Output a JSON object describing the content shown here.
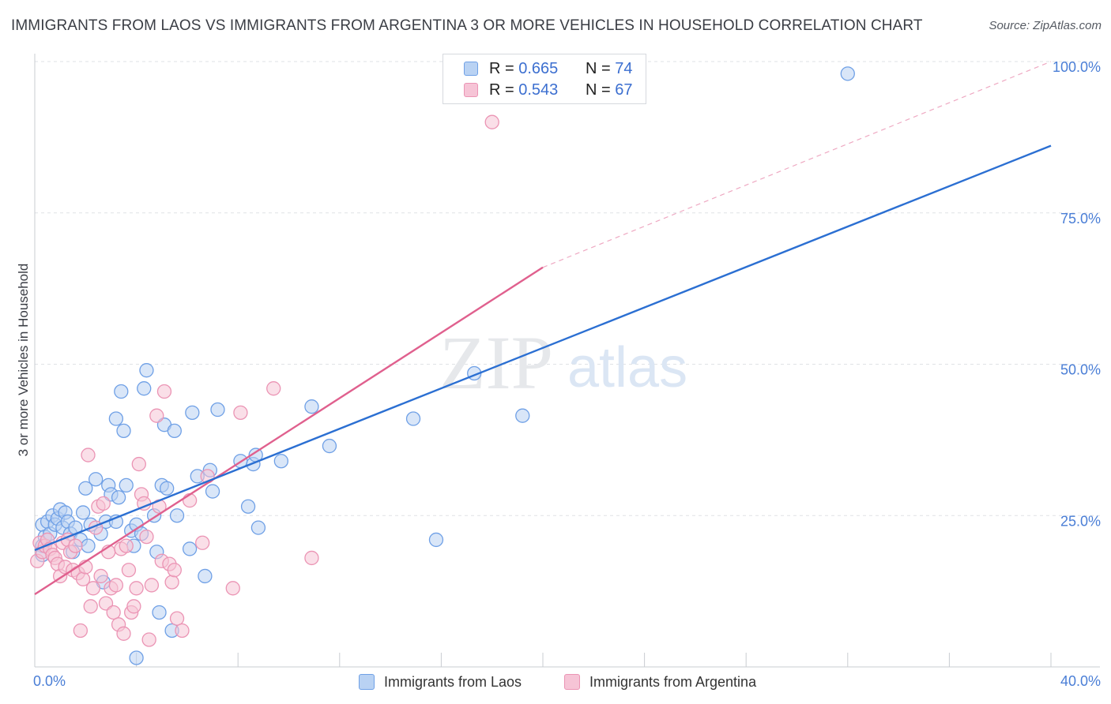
{
  "title": "IMMIGRANTS FROM LAOS VS IMMIGRANTS FROM ARGENTINA 3 OR MORE VEHICLES IN HOUSEHOLD CORRELATION CHART",
  "source": "Source: ZipAtlas.com",
  "watermark": {
    "zip": "ZIP",
    "atlas": "atlas"
  },
  "legend_top": [
    {
      "r_label": "R =",
      "r_value": "0.665",
      "n_label": "N =",
      "n_value": "74"
    },
    {
      "r_label": "R =",
      "r_value": "0.543",
      "n_label": "N =",
      "n_value": "67"
    }
  ],
  "chart_data": {
    "type": "scatter",
    "title": "IMMIGRANTS FROM LAOS VS IMMIGRANTS FROM ARGENTINA 3 OR MORE VEHICLES IN HOUSEHOLD CORRELATION CHART",
    "xlabel": "",
    "ylabel": "3 or more Vehicles in Household",
    "xlim": [
      0,
      40
    ],
    "ylim": [
      0,
      100
    ],
    "x_tick_labels": [
      "0.0%",
      "40.0%"
    ],
    "y_tick_labels": [
      "25.0%",
      "50.0%",
      "75.0%",
      "100.0%"
    ],
    "y_ticks": [
      25,
      50,
      75,
      100
    ],
    "grid": true,
    "legend_position": "top-center",
    "series": [
      {
        "name": "Immigrants from Laos",
        "color": "#6fa0e6",
        "fill": "#b9d2f3",
        "trend_color": "#2b6fd2",
        "r": 0.665,
        "n": 74,
        "trend": {
          "x": [
            0,
            40
          ],
          "y": [
            19.3,
            86.1
          ]
        },
        "points": [
          [
            0.3,
            20.0
          ],
          [
            0.3,
            18.5
          ],
          [
            0.3,
            23.5
          ],
          [
            0.4,
            21.5
          ],
          [
            0.5,
            24.0
          ],
          [
            0.6,
            22.0
          ],
          [
            0.7,
            25.0
          ],
          [
            0.8,
            23.5
          ],
          [
            0.9,
            24.5
          ],
          [
            1.0,
            26.0
          ],
          [
            1.1,
            23.0
          ],
          [
            1.2,
            25.5
          ],
          [
            1.3,
            24.0
          ],
          [
            1.4,
            22.0
          ],
          [
            1.5,
            19.0
          ],
          [
            1.6,
            23.0
          ],
          [
            1.8,
            21.0
          ],
          [
            1.9,
            25.5
          ],
          [
            2.0,
            29.5
          ],
          [
            2.1,
            20.0
          ],
          [
            2.2,
            23.5
          ],
          [
            2.4,
            31.0
          ],
          [
            2.6,
            22.0
          ],
          [
            2.7,
            14.0
          ],
          [
            2.8,
            24.0
          ],
          [
            2.9,
            30.0
          ],
          [
            3.0,
            28.5
          ],
          [
            3.2,
            24.0
          ],
          [
            3.2,
            41.0
          ],
          [
            3.3,
            28.0
          ],
          [
            3.4,
            45.5
          ],
          [
            3.5,
            39.0
          ],
          [
            3.6,
            30.0
          ],
          [
            3.8,
            22.5
          ],
          [
            3.9,
            20.0
          ],
          [
            4.0,
            23.5
          ],
          [
            4.0,
            1.5
          ],
          [
            4.2,
            22.0
          ],
          [
            4.3,
            46.0
          ],
          [
            4.4,
            49.0
          ],
          [
            4.7,
            25.0
          ],
          [
            4.8,
            19.0
          ],
          [
            4.9,
            9.0
          ],
          [
            5.0,
            30.0
          ],
          [
            5.1,
            40.0
          ],
          [
            5.2,
            29.5
          ],
          [
            5.4,
            6.0
          ],
          [
            5.5,
            39.0
          ],
          [
            5.6,
            25.0
          ],
          [
            6.1,
            19.5
          ],
          [
            6.2,
            42.0
          ],
          [
            6.4,
            31.5
          ],
          [
            6.7,
            15.0
          ],
          [
            6.9,
            32.5
          ],
          [
            7.0,
            29.0
          ],
          [
            7.2,
            42.5
          ],
          [
            8.1,
            34.0
          ],
          [
            8.4,
            26.5
          ],
          [
            8.6,
            33.5
          ],
          [
            8.7,
            35.0
          ],
          [
            8.8,
            23.0
          ],
          [
            9.7,
            34.0
          ],
          [
            10.9,
            43.0
          ],
          [
            11.6,
            36.5
          ],
          [
            14.9,
            41.0
          ],
          [
            15.8,
            21.0
          ],
          [
            17.3,
            48.5
          ],
          [
            19.2,
            41.5
          ],
          [
            32.0,
            98.0
          ]
        ]
      },
      {
        "name": "Immigrants from Argentina",
        "color": "#eb94b4",
        "fill": "#f6c4d6",
        "trend_color": "#e0608e",
        "r": 0.543,
        "n": 67,
        "trend": {
          "x": [
            0,
            20
          ],
          "y": [
            12.0,
            66.0
          ]
        },
        "trend_dashed": {
          "x": [
            20,
            40
          ],
          "y": [
            66.0,
            100.0
          ]
        },
        "points": [
          [
            0.1,
            17.5
          ],
          [
            0.2,
            20.5
          ],
          [
            0.3,
            19.0
          ],
          [
            0.4,
            20.0
          ],
          [
            0.5,
            21.0
          ],
          [
            0.6,
            19.5
          ],
          [
            0.7,
            18.5
          ],
          [
            0.8,
            18.0
          ],
          [
            0.9,
            17.0
          ],
          [
            1.0,
            15.0
          ],
          [
            1.1,
            20.5
          ],
          [
            1.2,
            16.5
          ],
          [
            1.3,
            21.0
          ],
          [
            1.4,
            19.0
          ],
          [
            1.5,
            16.0
          ],
          [
            1.6,
            20.0
          ],
          [
            1.7,
            15.5
          ],
          [
            1.8,
            6.0
          ],
          [
            1.9,
            14.5
          ],
          [
            2.0,
            16.5
          ],
          [
            2.1,
            35.0
          ],
          [
            2.2,
            10.0
          ],
          [
            2.3,
            13.0
          ],
          [
            2.4,
            23.0
          ],
          [
            2.5,
            26.5
          ],
          [
            2.6,
            15.0
          ],
          [
            2.7,
            27.0
          ],
          [
            2.8,
            10.5
          ],
          [
            2.9,
            19.0
          ],
          [
            3.0,
            13.0
          ],
          [
            3.1,
            9.0
          ],
          [
            3.2,
            13.5
          ],
          [
            3.3,
            7.0
          ],
          [
            3.4,
            19.5
          ],
          [
            3.5,
            5.5
          ],
          [
            3.6,
            20.0
          ],
          [
            3.7,
            16.0
          ],
          [
            3.8,
            9.0
          ],
          [
            3.9,
            10.0
          ],
          [
            4.0,
            13.0
          ],
          [
            4.1,
            33.5
          ],
          [
            4.2,
            28.5
          ],
          [
            4.3,
            27.0
          ],
          [
            4.4,
            21.5
          ],
          [
            4.5,
            4.5
          ],
          [
            4.6,
            13.5
          ],
          [
            4.8,
            41.5
          ],
          [
            4.9,
            26.5
          ],
          [
            5.0,
            17.5
          ],
          [
            5.1,
            45.5
          ],
          [
            5.3,
            17.0
          ],
          [
            5.4,
            14.0
          ],
          [
            5.5,
            16.0
          ],
          [
            5.6,
            8.0
          ],
          [
            5.8,
            6.0
          ],
          [
            6.1,
            27.5
          ],
          [
            6.6,
            20.5
          ],
          [
            6.8,
            31.5
          ],
          [
            7.8,
            13.0
          ],
          [
            8.1,
            42.0
          ],
          [
            9.4,
            46.0
          ],
          [
            10.9,
            18.0
          ],
          [
            18.0,
            90.0
          ]
        ]
      }
    ]
  }
}
